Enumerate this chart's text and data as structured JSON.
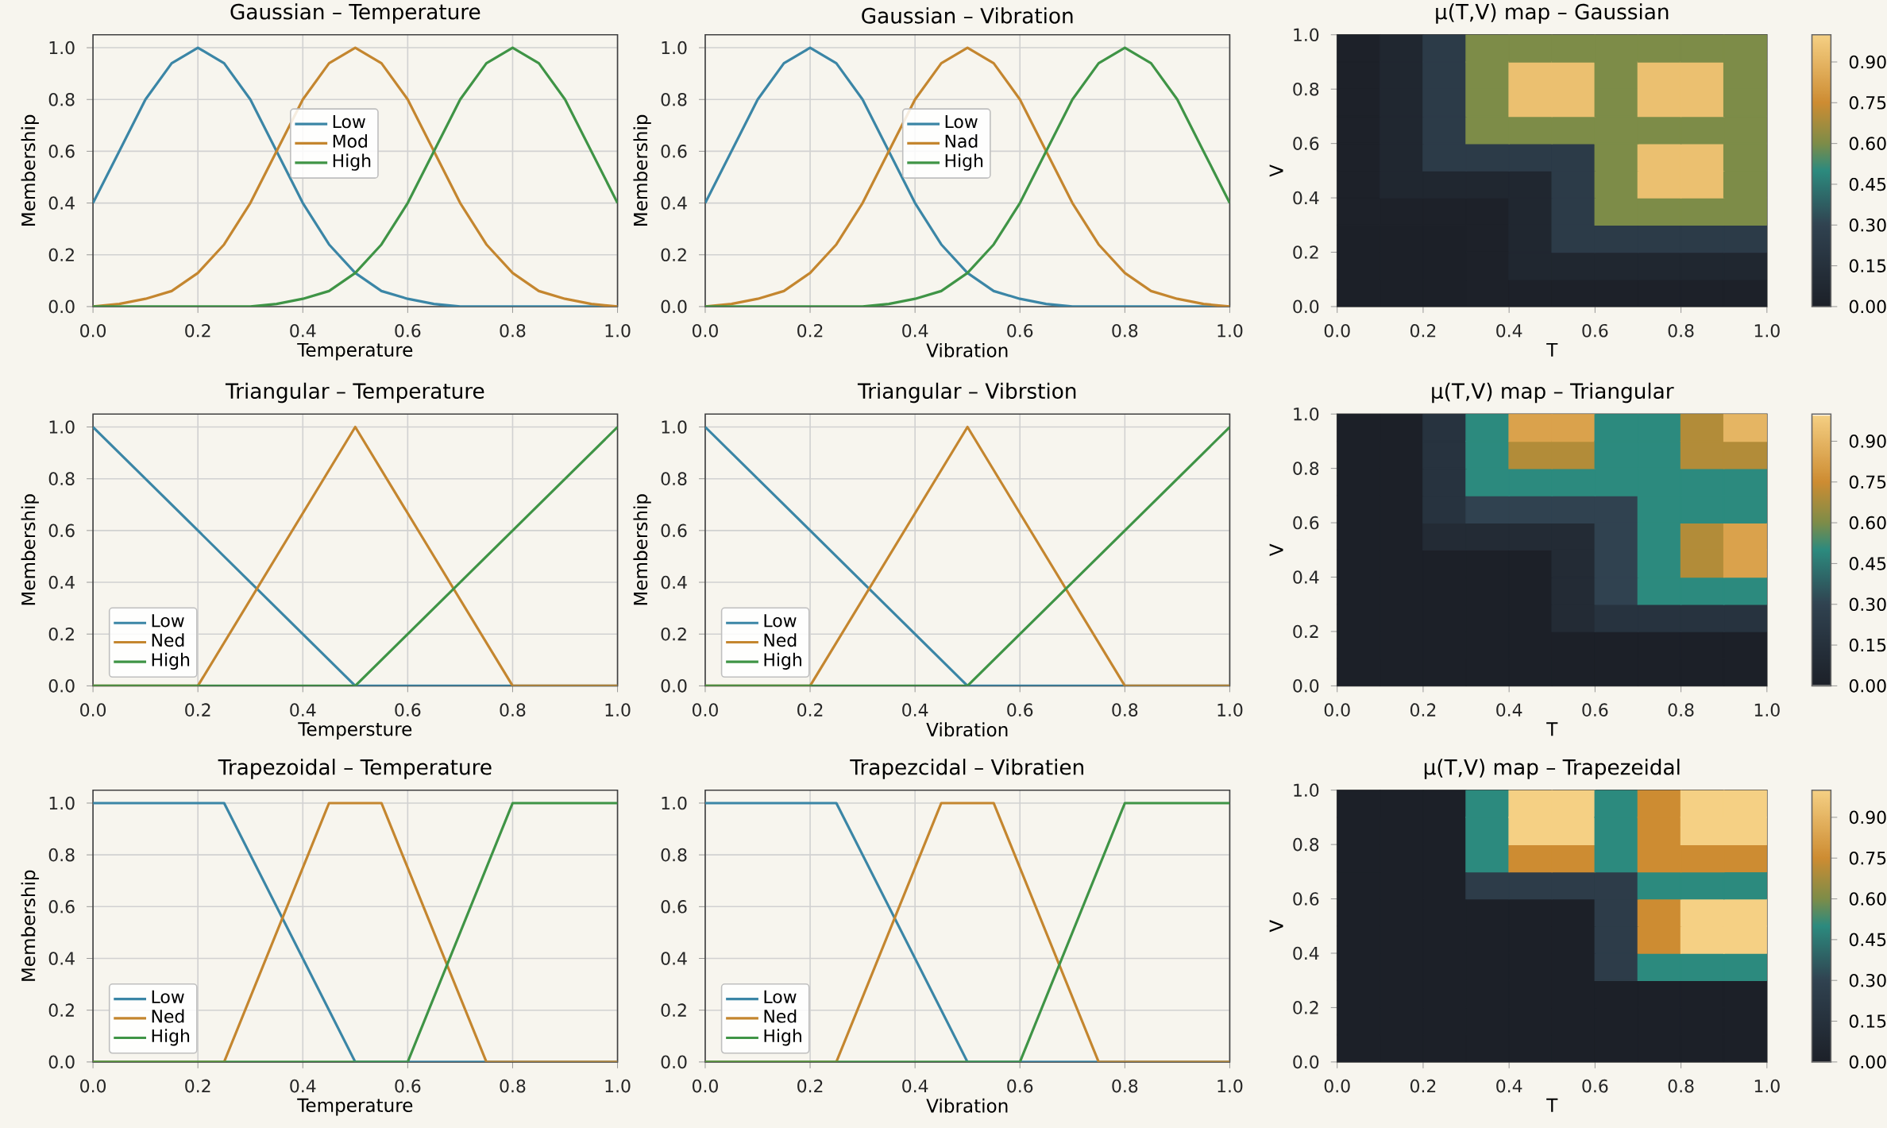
{
  "chart_data": [
    {
      "type": "line",
      "title": "Gaussian – Temperature",
      "xlabel": "Temperature",
      "ylabel": "Membership",
      "xlim": [
        0,
        1
      ],
      "ylim": [
        0,
        1.05
      ],
      "grid": true,
      "legend": "center",
      "xticks": [
        {
          "value": 0,
          "label": "0.0"
        },
        {
          "value": 0.2,
          "label": "0.2"
        },
        {
          "value": 0.4,
          "label": "0.4"
        },
        {
          "value": 0.6,
          "label": "0.6"
        },
        {
          "value": 0.8,
          "label": "0.8"
        },
        {
          "value": 1,
          "label": "1.0"
        }
      ],
      "yticks": [
        {
          "value": 0,
          "label": "0.0"
        },
        {
          "value": 0.2,
          "label": "0.2"
        },
        {
          "value": 0.4,
          "label": "0.4"
        },
        {
          "value": 0.6,
          "label": "0.6"
        },
        {
          "value": 0.8,
          "label": "0.8"
        },
        {
          "value": 1,
          "label": "1.0"
        }
      ],
      "series": [
        {
          "name": "Low",
          "color": "#3b86a6",
          "x": [
            0,
            0.05,
            0.1,
            0.15,
            0.2,
            0.25,
            0.3,
            0.35,
            0.4,
            0.45,
            0.5,
            0.55,
            0.6,
            0.65,
            0.7,
            0.75,
            0.8,
            0.85,
            0.9,
            0.95,
            1
          ],
          "values": [
            0.4,
            0.6,
            0.8,
            0.94,
            1,
            0.94,
            0.8,
            0.6,
            0.4,
            0.24,
            0.13,
            0.06,
            0.03,
            0.01,
            0,
            0,
            0,
            0,
            0,
            0,
            0
          ]
        },
        {
          "name": "Mod",
          "color": "#c4862f",
          "x": [
            0,
            0.05,
            0.1,
            0.15,
            0.2,
            0.25,
            0.3,
            0.35,
            0.4,
            0.45,
            0.5,
            0.55,
            0.6,
            0.65,
            0.7,
            0.75,
            0.8,
            0.85,
            0.9,
            0.95,
            1
          ],
          "values": [
            0,
            0.01,
            0.03,
            0.06,
            0.13,
            0.24,
            0.4,
            0.6,
            0.8,
            0.94,
            1,
            0.94,
            0.8,
            0.6,
            0.4,
            0.24,
            0.13,
            0.06,
            0.03,
            0.01,
            0
          ]
        },
        {
          "name": "High",
          "color": "#3f9446",
          "x": [
            0,
            0.05,
            0.1,
            0.15,
            0.2,
            0.25,
            0.3,
            0.35,
            0.4,
            0.45,
            0.5,
            0.55,
            0.6,
            0.65,
            0.7,
            0.75,
            0.8,
            0.85,
            0.9,
            0.95,
            1
          ],
          "values": [
            0,
            0,
            0,
            0,
            0,
            0,
            0,
            0.01,
            0.03,
            0.06,
            0.13,
            0.24,
            0.4,
            0.6,
            0.8,
            0.94,
            1,
            0.94,
            0.8,
            0.6,
            0.4
          ]
        }
      ]
    },
    {
      "type": "line",
      "title": "Gaussian – Vibration",
      "xlabel": "Vibration",
      "ylabel": "Membership",
      "xlim": [
        0,
        1
      ],
      "ylim": [
        0,
        1.05
      ],
      "grid": true,
      "legend": "center",
      "xticks": [
        {
          "value": 0,
          "label": "0.0"
        },
        {
          "value": 0.2,
          "label": "0.2"
        },
        {
          "value": 0.4,
          "label": "0.4"
        },
        {
          "value": 0.6,
          "label": "0.6"
        },
        {
          "value": 0.8,
          "label": "0.8"
        },
        {
          "value": 1,
          "label": "1.0"
        }
      ],
      "yticks": [
        {
          "value": 0,
          "label": "0.0"
        },
        {
          "value": 0.2,
          "label": "0.2"
        },
        {
          "value": 0.4,
          "label": "0.4"
        },
        {
          "value": 0.6,
          "label": "0.6"
        },
        {
          "value": 0.8,
          "label": "0.8"
        },
        {
          "value": 1,
          "label": "1.0"
        }
      ],
      "series": [
        {
          "name": "Low",
          "color": "#3b86a6",
          "x": [
            0,
            0.05,
            0.1,
            0.15,
            0.2,
            0.25,
            0.3,
            0.35,
            0.4,
            0.45,
            0.5,
            0.55,
            0.6,
            0.65,
            0.7,
            0.75,
            0.8,
            0.85,
            0.9,
            0.95,
            1
          ],
          "values": [
            0.4,
            0.6,
            0.8,
            0.94,
            1,
            0.94,
            0.8,
            0.6,
            0.4,
            0.24,
            0.13,
            0.06,
            0.03,
            0.01,
            0,
            0,
            0,
            0,
            0,
            0,
            0
          ]
        },
        {
          "name": "Nad",
          "color": "#c4862f",
          "x": [
            0,
            0.05,
            0.1,
            0.15,
            0.2,
            0.25,
            0.3,
            0.35,
            0.4,
            0.45,
            0.5,
            0.55,
            0.6,
            0.65,
            0.7,
            0.75,
            0.8,
            0.85,
            0.9,
            0.95,
            1
          ],
          "values": [
            0,
            0.01,
            0.03,
            0.06,
            0.13,
            0.24,
            0.4,
            0.6,
            0.8,
            0.94,
            1,
            0.94,
            0.8,
            0.6,
            0.4,
            0.24,
            0.13,
            0.06,
            0.03,
            0.01,
            0
          ]
        },
        {
          "name": "High",
          "color": "#3f9446",
          "x": [
            0,
            0.05,
            0.1,
            0.15,
            0.2,
            0.25,
            0.3,
            0.35,
            0.4,
            0.45,
            0.5,
            0.55,
            0.6,
            0.65,
            0.7,
            0.75,
            0.8,
            0.85,
            0.9,
            0.95,
            1
          ],
          "values": [
            0,
            0,
            0,
            0,
            0,
            0,
            0,
            0.01,
            0.03,
            0.06,
            0.13,
            0.24,
            0.4,
            0.6,
            0.8,
            0.94,
            1,
            0.94,
            0.8,
            0.6,
            0.4
          ]
        }
      ]
    },
    {
      "type": "heatmap",
      "title": "μ(T,V) map – Gaussian",
      "xlabel": "T",
      "ylabel": "V",
      "xlim": [
        0,
        1
      ],
      "ylim": [
        0,
        1
      ],
      "clim": [
        0,
        1
      ],
      "xticks": [
        {
          "value": 0,
          "label": "0.0"
        },
        {
          "value": 0.2,
          "label": "0.2"
        },
        {
          "value": 0.4,
          "label": "0.4"
        },
        {
          "value": 0.6,
          "label": "0.6"
        },
        {
          "value": 0.8,
          "label": "0.8"
        },
        {
          "value": 1,
          "label": "1.0"
        }
      ],
      "yticks": [
        {
          "value": 0,
          "label": "0.0"
        },
        {
          "value": 0.2,
          "label": "0.2"
        },
        {
          "value": 0.4,
          "label": "0.4"
        },
        {
          "value": 0.6,
          "label": "0.6"
        },
        {
          "value": 0.8,
          "label": "0.8"
        },
        {
          "value": 1,
          "label": "1.0"
        }
      ],
      "cticks": [
        {
          "value": 0,
          "label": "0.00"
        },
        {
          "value": 0.15,
          "label": "0.15"
        },
        {
          "value": 0.3,
          "label": "0.30"
        },
        {
          "value": 0.45,
          "label": "0.45"
        },
        {
          "value": 0.6,
          "label": "0.60"
        },
        {
          "value": 0.75,
          "label": "0.75"
        },
        {
          "value": 0.9,
          "label": "0.90"
        }
      ],
      "cells": [
        [
          0.01,
          0.06,
          0.24,
          0.6,
          0.6,
          0.6,
          0.6,
          0.6,
          0.6,
          0.6
        ],
        [
          0.01,
          0.06,
          0.24,
          0.6,
          0.94,
          0.94,
          0.6,
          0.94,
          0.94,
          0.6
        ],
        [
          0.01,
          0.06,
          0.24,
          0.6,
          0.94,
          0.94,
          0.6,
          0.94,
          0.94,
          0.6
        ],
        [
          0.01,
          0.06,
          0.24,
          0.6,
          0.6,
          0.6,
          0.6,
          0.6,
          0.6,
          0.6
        ],
        [
          0.01,
          0.06,
          0.24,
          0.24,
          0.24,
          0.24,
          0.6,
          0.94,
          0.94,
          0.6
        ],
        [
          0.01,
          0.06,
          0.06,
          0.06,
          0.06,
          0.24,
          0.6,
          0.94,
          0.94,
          0.6
        ],
        [
          0.01,
          0.01,
          0.01,
          0.01,
          0.06,
          0.24,
          0.6,
          0.6,
          0.6,
          0.6
        ],
        [
          0,
          0,
          0,
          0.01,
          0.06,
          0.24,
          0.24,
          0.24,
          0.24,
          0.24
        ],
        [
          0,
          0,
          0,
          0.01,
          0.06,
          0.06,
          0.06,
          0.06,
          0.06,
          0.06
        ],
        [
          0,
          0,
          0,
          0.01,
          0.01,
          0.01,
          0.01,
          0.01,
          0.01,
          0.01
        ]
      ]
    },
    {
      "type": "line",
      "title": "Triangular – Temperature",
      "xlabel": "Tempersture",
      "ylabel": "Membership",
      "xlim": [
        0,
        1
      ],
      "ylim": [
        0,
        1.05
      ],
      "grid": true,
      "legend": "bottom left",
      "xticks": [
        {
          "value": 0,
          "label": "0.0"
        },
        {
          "value": 0.2,
          "label": "0.2"
        },
        {
          "value": 0.4,
          "label": "0.4"
        },
        {
          "value": 0.6,
          "label": "0.6"
        },
        {
          "value": 0.8,
          "label": "0.8"
        },
        {
          "value": 1,
          "label": "1.0"
        }
      ],
      "yticks": [
        {
          "value": 0,
          "label": "0.0"
        },
        {
          "value": 0.2,
          "label": "0.2"
        },
        {
          "value": 0.4,
          "label": "0.4"
        },
        {
          "value": 0.6,
          "label": "0.6"
        },
        {
          "value": 0.8,
          "label": "0.8"
        },
        {
          "value": 1,
          "label": "1.0"
        }
      ],
      "series": [
        {
          "name": "Low",
          "color": "#3b86a6",
          "x": [
            0,
            0.5,
            1
          ],
          "values": [
            1,
            0,
            0
          ]
        },
        {
          "name": "Ned",
          "color": "#c4862f",
          "x": [
            0,
            0.2,
            0.5,
            0.8,
            1
          ],
          "values": [
            0,
            0,
            1,
            0,
            0
          ]
        },
        {
          "name": "High",
          "color": "#3f9446",
          "x": [
            0,
            0.5,
            1
          ],
          "values": [
            0,
            0,
            1
          ]
        }
      ]
    },
    {
      "type": "line",
      "title": "Triangular – Vibrstion",
      "xlabel": "Vibration",
      "ylabel": "Membership",
      "xlim": [
        0,
        1
      ],
      "ylim": [
        0,
        1.05
      ],
      "grid": true,
      "legend": "bottom left",
      "xticks": [
        {
          "value": 0,
          "label": "0.0"
        },
        {
          "value": 0.2,
          "label": "0.2"
        },
        {
          "value": 0.4,
          "label": "0.4"
        },
        {
          "value": 0.6,
          "label": "0.6"
        },
        {
          "value": 0.8,
          "label": "0.8"
        },
        {
          "value": 1,
          "label": "1.0"
        }
      ],
      "yticks": [
        {
          "value": 0,
          "label": "0.0"
        },
        {
          "value": 0.2,
          "label": "0.2"
        },
        {
          "value": 0.4,
          "label": "0.4"
        },
        {
          "value": 0.6,
          "label": "0.6"
        },
        {
          "value": 0.8,
          "label": "0.8"
        },
        {
          "value": 1,
          "label": "1.0"
        }
      ],
      "series": [
        {
          "name": "Low",
          "color": "#3b86a6",
          "x": [
            0,
            0.5,
            1
          ],
          "values": [
            1,
            0,
            0
          ]
        },
        {
          "name": "Ned",
          "color": "#c4862f",
          "x": [
            0,
            0.2,
            0.5,
            0.8,
            1
          ],
          "values": [
            0,
            0,
            1,
            0,
            0
          ]
        },
        {
          "name": "High",
          "color": "#3f9446",
          "x": [
            0,
            0.5,
            1
          ],
          "values": [
            0,
            0,
            1
          ]
        }
      ]
    },
    {
      "type": "heatmap",
      "title": "μ(T,V) map – Triangular",
      "xlabel": "T",
      "ylabel": "V",
      "xlim": [
        0,
        1
      ],
      "ylim": [
        0,
        1
      ],
      "clim": [
        0,
        1
      ],
      "xticks": [
        {
          "value": 0,
          "label": "0.0"
        },
        {
          "value": 0.2,
          "label": "0.2"
        },
        {
          "value": 0.4,
          "label": "0.4"
        },
        {
          "value": 0.6,
          "label": "0.6"
        },
        {
          "value": 0.8,
          "label": "0.8"
        },
        {
          "value": 1,
          "label": "1.0"
        }
      ],
      "yticks": [
        {
          "value": 0,
          "label": "0.0"
        },
        {
          "value": 0.2,
          "label": "0.2"
        },
        {
          "value": 0.4,
          "label": "0.4"
        },
        {
          "value": 0.6,
          "label": "0.6"
        },
        {
          "value": 0.8,
          "label": "0.8"
        },
        {
          "value": 1,
          "label": "1.0"
        }
      ],
      "cticks": [
        {
          "value": 0,
          "label": "0.00"
        },
        {
          "value": 0.15,
          "label": "0.15"
        },
        {
          "value": 0.3,
          "label": "0.30"
        },
        {
          "value": 0.45,
          "label": "0.45"
        },
        {
          "value": 0.6,
          "label": "0.60"
        },
        {
          "value": 0.75,
          "label": "0.75"
        },
        {
          "value": 0.9,
          "label": "0.90"
        }
      ],
      "cells": [
        [
          0,
          0,
          0.17,
          0.5,
          0.83,
          0.83,
          0.5,
          0.5,
          0.7,
          0.9
        ],
        [
          0,
          0,
          0.17,
          0.5,
          0.7,
          0.7,
          0.5,
          0.5,
          0.7,
          0.7
        ],
        [
          0,
          0,
          0.17,
          0.5,
          0.5,
          0.5,
          0.5,
          0.5,
          0.5,
          0.5
        ],
        [
          0,
          0,
          0.17,
          0.3,
          0.3,
          0.3,
          0.3,
          0.5,
          0.5,
          0.5
        ],
        [
          0,
          0,
          0.1,
          0.1,
          0.1,
          0.1,
          0.3,
          0.5,
          0.7,
          0.83
        ],
        [
          0,
          0,
          0,
          0,
          0,
          0.1,
          0.3,
          0.5,
          0.7,
          0.83
        ],
        [
          0,
          0,
          0,
          0,
          0,
          0.1,
          0.3,
          0.5,
          0.5,
          0.5
        ],
        [
          0,
          0,
          0,
          0,
          0,
          0.1,
          0.17,
          0.17,
          0.17,
          0.17
        ],
        [
          0,
          0,
          0,
          0,
          0,
          0,
          0,
          0,
          0,
          0
        ],
        [
          0,
          0,
          0,
          0,
          0,
          0,
          0,
          0,
          0,
          0
        ]
      ]
    },
    {
      "type": "line",
      "title": "Trapezoidal – Temperature",
      "xlabel": "Temperature",
      "ylabel": "Membership",
      "xlim": [
        0,
        1
      ],
      "ylim": [
        0,
        1.05
      ],
      "grid": true,
      "legend": "bottom left",
      "xticks": [
        {
          "value": 0,
          "label": "0.0"
        },
        {
          "value": 0.2,
          "label": "0.2"
        },
        {
          "value": 0.4,
          "label": "0.4"
        },
        {
          "value": 0.6,
          "label": "0.6"
        },
        {
          "value": 0.8,
          "label": "0.8"
        },
        {
          "value": 1,
          "label": "1.0"
        }
      ],
      "yticks": [
        {
          "value": 0,
          "label": "0.0"
        },
        {
          "value": 0.2,
          "label": "0.2"
        },
        {
          "value": 0.4,
          "label": "0.4"
        },
        {
          "value": 0.6,
          "label": "0.6"
        },
        {
          "value": 0.8,
          "label": "0.8"
        },
        {
          "value": 1,
          "label": "1.0"
        }
      ],
      "series": [
        {
          "name": "Low",
          "color": "#3b86a6",
          "x": [
            0,
            0.25,
            0.5,
            1
          ],
          "values": [
            1,
            1,
            0,
            0
          ]
        },
        {
          "name": "Ned",
          "color": "#c4862f",
          "x": [
            0,
            0.25,
            0.45,
            0.55,
            0.75,
            1
          ],
          "values": [
            0,
            0,
            1,
            1,
            0,
            0
          ]
        },
        {
          "name": "High",
          "color": "#3f9446",
          "x": [
            0,
            0.6,
            0.8,
            1
          ],
          "values": [
            0,
            0,
            1,
            1
          ]
        }
      ]
    },
    {
      "type": "line",
      "title": "Trapezcidal – Vibratien",
      "xlabel": "Vibration",
      "xlim": [
        0,
        1
      ],
      "ylim": [
        0,
        1.05
      ],
      "grid": true,
      "legend": "bottom left",
      "xticks": [
        {
          "value": 0,
          "label": "0.0"
        },
        {
          "value": 0.2,
          "label": "0.2"
        },
        {
          "value": 0.4,
          "label": "0.4"
        },
        {
          "value": 0.6,
          "label": "0.6"
        },
        {
          "value": 0.8,
          "label": "0.8"
        },
        {
          "value": 1,
          "label": "1.0"
        }
      ],
      "yticks": [
        {
          "value": 0,
          "label": "0.0"
        },
        {
          "value": 0.2,
          "label": "0.2"
        },
        {
          "value": 0.4,
          "label": "0.4"
        },
        {
          "value": 0.6,
          "label": "0.6"
        },
        {
          "value": 0.8,
          "label": "0.8"
        },
        {
          "value": 1,
          "label": "1.0"
        }
      ],
      "series": [
        {
          "name": "Low",
          "color": "#3b86a6",
          "x": [
            0,
            0.25,
            0.5,
            1
          ],
          "values": [
            1,
            1,
            0,
            0
          ]
        },
        {
          "name": "Ned",
          "color": "#c4862f",
          "x": [
            0,
            0.25,
            0.45,
            0.55,
            0.75,
            1
          ],
          "values": [
            0,
            0,
            1,
            1,
            0,
            0
          ]
        },
        {
          "name": "High",
          "color": "#3f9446",
          "x": [
            0,
            0.6,
            0.8,
            1
          ],
          "values": [
            0,
            0,
            1,
            1
          ]
        }
      ]
    },
    {
      "type": "heatmap",
      "title": "μ(T,V) map – Trapezeidal",
      "xlabel": "T",
      "ylabel": "V",
      "xlim": [
        0,
        1
      ],
      "ylim": [
        0,
        1
      ],
      "clim": [
        0,
        1
      ],
      "xticks": [
        {
          "value": 0,
          "label": "0.0"
        },
        {
          "value": 0.2,
          "label": "0.2"
        },
        {
          "value": 0.4,
          "label": "0.4"
        },
        {
          "value": 0.6,
          "label": "0.6"
        },
        {
          "value": 0.8,
          "label": "0.8"
        },
        {
          "value": 1,
          "label": "1.0"
        }
      ],
      "yticks": [
        {
          "value": 0,
          "label": "0.0"
        },
        {
          "value": 0.2,
          "label": "0.2"
        },
        {
          "value": 0.4,
          "label": "0.4"
        },
        {
          "value": 0.6,
          "label": "0.6"
        },
        {
          "value": 0.8,
          "label": "0.8"
        },
        {
          "value": 1,
          "label": "1.0"
        }
      ],
      "cticks": [
        {
          "value": 0,
          "label": "0.00"
        },
        {
          "value": 0.15,
          "label": "0.15"
        },
        {
          "value": 0.3,
          "label": "0.30"
        },
        {
          "value": 0.45,
          "label": "0.45"
        },
        {
          "value": 0.6,
          "label": "0.60"
        },
        {
          "value": 0.75,
          "label": "0.75"
        },
        {
          "value": 0.9,
          "label": "0.90"
        }
      ],
      "cells": [
        [
          0,
          0,
          0,
          0.5,
          1,
          1,
          0.5,
          0.75,
          1,
          1
        ],
        [
          0,
          0,
          0,
          0.5,
          1,
          1,
          0.5,
          0.75,
          1,
          1
        ],
        [
          0,
          0,
          0,
          0.5,
          0.75,
          0.75,
          0.5,
          0.75,
          0.75,
          0.75
        ],
        [
          0,
          0,
          0,
          0.25,
          0.25,
          0.25,
          0.25,
          0.5,
          0.5,
          0.5
        ],
        [
          0,
          0,
          0,
          0,
          0,
          0,
          0.25,
          0.75,
          1,
          1
        ],
        [
          0,
          0,
          0,
          0,
          0,
          0,
          0.25,
          0.75,
          1,
          1
        ],
        [
          0,
          0,
          0,
          0,
          0,
          0,
          0.25,
          0.5,
          0.5,
          0.5
        ],
        [
          0,
          0,
          0,
          0,
          0,
          0,
          0,
          0,
          0,
          0
        ],
        [
          0,
          0,
          0,
          0,
          0,
          0,
          0,
          0,
          0,
          0
        ],
        [
          0,
          0,
          0,
          0,
          0,
          0,
          0,
          0,
          0,
          0
        ]
      ]
    }
  ]
}
